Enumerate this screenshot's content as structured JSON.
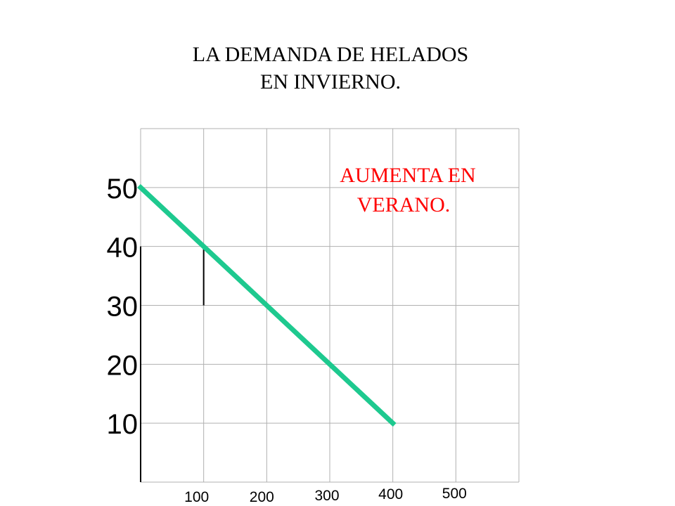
{
  "title_lines": [
    "LA DEMANDA DE HELADOS",
    "EN INVIERNO."
  ],
  "annotation_lines": [
    "AUMENTA EN",
    "VERANO."
  ],
  "chart_data": {
    "type": "line",
    "title": "LA DEMANDA DE HELADOS EN INVIERNO.",
    "xlabel": "",
    "ylabel": "",
    "x_ticks": [
      "100",
      "200",
      "300",
      "400",
      "500"
    ],
    "y_ticks": [
      "50",
      "40",
      "30",
      "20",
      "10"
    ],
    "xlim": [
      0,
      600
    ],
    "ylim": [
      0,
      60
    ],
    "grid": true,
    "series": [
      {
        "x": [
          0,
          100,
          200,
          300,
          400
        ],
        "y": [
          50,
          40,
          30,
          20,
          10
        ],
        "color": "#1ec98f"
      }
    ],
    "guide": {
      "x": 100,
      "y": [
        30,
        40
      ],
      "color": "#000000"
    },
    "annotation": "AUMENTA EN VERANO.",
    "annotation_color": "#ff0000"
  }
}
